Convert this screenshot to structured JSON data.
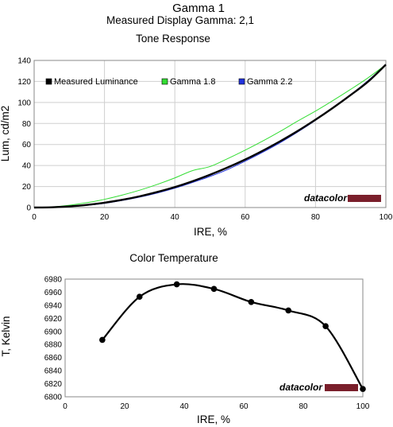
{
  "header": {
    "title": "Gamma 1",
    "subtitle": "Measured Display Gamma: 2,1"
  },
  "brand": {
    "logo_text": "datacolor",
    "logo_color": "#7a1f2b"
  },
  "chart_data": [
    {
      "type": "line",
      "title": "Tone Response",
      "xlabel": "IRE, %",
      "ylabel": "Lum, cd/m2",
      "xlim": [
        0,
        100
      ],
      "ylim": [
        0,
        140
      ],
      "xticks": [
        0,
        20,
        40,
        60,
        80,
        100
      ],
      "yticks": [
        0,
        20,
        40,
        60,
        80,
        100,
        120,
        140
      ],
      "grid": true,
      "legend_position": "top",
      "series": [
        {
          "name": "Measured Luminance",
          "color": "#000000",
          "gamma": 2.1,
          "x": [
            0,
            5,
            10,
            15,
            20,
            25,
            30,
            35,
            40,
            45,
            50,
            55,
            60,
            65,
            70,
            75,
            80,
            85,
            90,
            95,
            100
          ],
          "y": [
            0,
            0.25,
            1.1,
            2.5,
            4.6,
            7.3,
            10.7,
            14.8,
            19.5,
            25.0,
            31.2,
            38.1,
            45.7,
            54.1,
            63.2,
            73.0,
            83.6,
            95.0,
            107.1,
            120.0,
            136.0
          ]
        },
        {
          "name": "Gamma 1.8",
          "color": "#33dd33",
          "gamma": 1.8,
          "x": [
            0,
            5,
            10,
            15,
            20,
            25,
            30,
            35,
            40,
            45,
            50,
            55,
            60,
            65,
            70,
            75,
            80,
            85,
            90,
            95,
            100
          ],
          "y": [
            0,
            0.6,
            2.2,
            4.6,
            7.8,
            11.8,
            16.5,
            22.0,
            28.2,
            35.1,
            39.0,
            46.5,
            54.6,
            63.3,
            72.6,
            82.4,
            91.8,
            101.9,
            112.5,
            123.6,
            136.0
          ]
        },
        {
          "name": "Gamma 2.2",
          "color": "#2233dd",
          "gamma": 2.2,
          "x": [
            0,
            5,
            10,
            15,
            20,
            25,
            30,
            35,
            40,
            45,
            50,
            55,
            60,
            65,
            70,
            75,
            80,
            85,
            90,
            95,
            100
          ],
          "y": [
            0,
            0.2,
            0.86,
            2.1,
            4.0,
            6.7,
            9.9,
            13.8,
            18.4,
            23.8,
            29.6,
            36.2,
            44.1,
            52.6,
            61.8,
            72.0,
            83.0,
            95.0,
            107.4,
            121.0,
            136.0
          ]
        }
      ]
    },
    {
      "type": "line",
      "title": "Color Temperature",
      "xlabel": "IRE, %",
      "ylabel": "T, Kelvin",
      "xlim": [
        0,
        100
      ],
      "ylim": [
        6800,
        6980
      ],
      "xticks": [
        0,
        20,
        40,
        60,
        80,
        100
      ],
      "yticks": [
        6800,
        6820,
        6840,
        6860,
        6880,
        6900,
        6920,
        6940,
        6960,
        6980
      ],
      "grid": false,
      "series": [
        {
          "name": "",
          "color": "#000000",
          "x": [
            12.5,
            25,
            37.5,
            50,
            62.5,
            75,
            87.5,
            100
          ],
          "y": [
            6887,
            6953,
            6972,
            6965,
            6945,
            6932,
            6908,
            6812
          ]
        }
      ]
    }
  ]
}
